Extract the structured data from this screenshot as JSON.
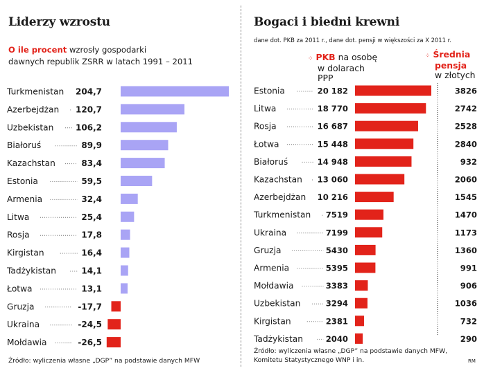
{
  "chart_data": [
    {
      "type": "bar",
      "title": "Liderzy wzrostu",
      "subtitle_highlight": "O ile procent",
      "subtitle_line1": "wzrosły gospodarki",
      "subtitle_line2": "dawnych republik ZSRR w latach 1991 – 2011",
      "categories": [
        "Turkmenistan",
        "Azerbejdżan",
        "Uzbekistan",
        "Białoruś",
        "Kazachstan",
        "Estonia",
        "Armenia",
        "Litwa",
        "Rosja",
        "Kirgistan",
        "Tadżykistan",
        "Łotwa",
        "Gruzja",
        "Ukraina",
        "Mołdawia"
      ],
      "values": [
        204.7,
        120.7,
        106.2,
        89.9,
        83.4,
        59.5,
        32.4,
        25.4,
        17.8,
        16.4,
        14.1,
        13.1,
        -17.7,
        -24.5,
        -26.5
      ],
      "value_labels": [
        "204,7",
        "120,7",
        "106,2",
        "89,9",
        "83,4",
        "59,5",
        "32,4",
        "25,4",
        "17,8",
        "16,4",
        "14,1",
        "13,1",
        "-17,7",
        "-24,5",
        "-26,5"
      ],
      "colors": {
        "positive": "#a9a4f5",
        "negative": "#e2231a"
      },
      "source": "Źródło: wyliczenia własne „DGP” na podstawie danych MFW"
    },
    {
      "type": "bar",
      "title": "Bogaci i biedni krewni",
      "note": "dane dot. PKB za 2011 r., dane dot. pensji w większości za X 2011 r.",
      "legend": {
        "gdp_highlight": "PKB",
        "gdp_rest_line1": "na osobę",
        "gdp_line2": "w dolarach",
        "gdp_line3": "PPP",
        "pension_line1": "Średnia",
        "pension_line2": "pensja",
        "pension_line3": "w złotych",
        "marker": "⁘"
      },
      "categories": [
        "Estonia",
        "Litwa",
        "Rosja",
        "Łotwa",
        "Białoruś",
        "Kazachstan",
        "Azerbejdżan",
        "Turkmenistan",
        "Ukraina",
        "Gruzja",
        "Armenia",
        "Mołdawia",
        "Uzbekistan",
        "Kirgistan",
        "Tadżykistan"
      ],
      "series": [
        {
          "name": "PKB na osobę w dolarach PPP",
          "values": [
            20182,
            18770,
            16687,
            15448,
            14948,
            13060,
            10216,
            7519,
            7199,
            5430,
            5395,
            3383,
            3294,
            2381,
            2040
          ],
          "labels": [
            "20 182",
            "18 770",
            "16 687",
            "15 448",
            "14 948",
            "13 060",
            "10 216",
            "7519",
            "7199",
            "5430",
            "5395",
            "3383",
            "3294",
            "2381",
            "2040"
          ]
        },
        {
          "name": "Średnia pensja w złotych",
          "values": [
            3826,
            2742,
            2528,
            2840,
            932,
            2060,
            1545,
            1470,
            1173,
            1360,
            991,
            906,
            1036,
            732,
            290
          ],
          "labels": [
            "3826",
            "2742",
            "2528",
            "2840",
            "932",
            "2060",
            "1545",
            "1470",
            "1173",
            "1360",
            "991",
            "906",
            "1036",
            "732",
            "290"
          ]
        }
      ],
      "colors": {
        "bar": "#e2231a"
      },
      "source_line1": "Źródło: wyliczenia własne „DGP” na podstawie danych MFW,",
      "source_line2": "Komitetu Statystycznego WNP i in.",
      "credit": "RM"
    }
  ]
}
